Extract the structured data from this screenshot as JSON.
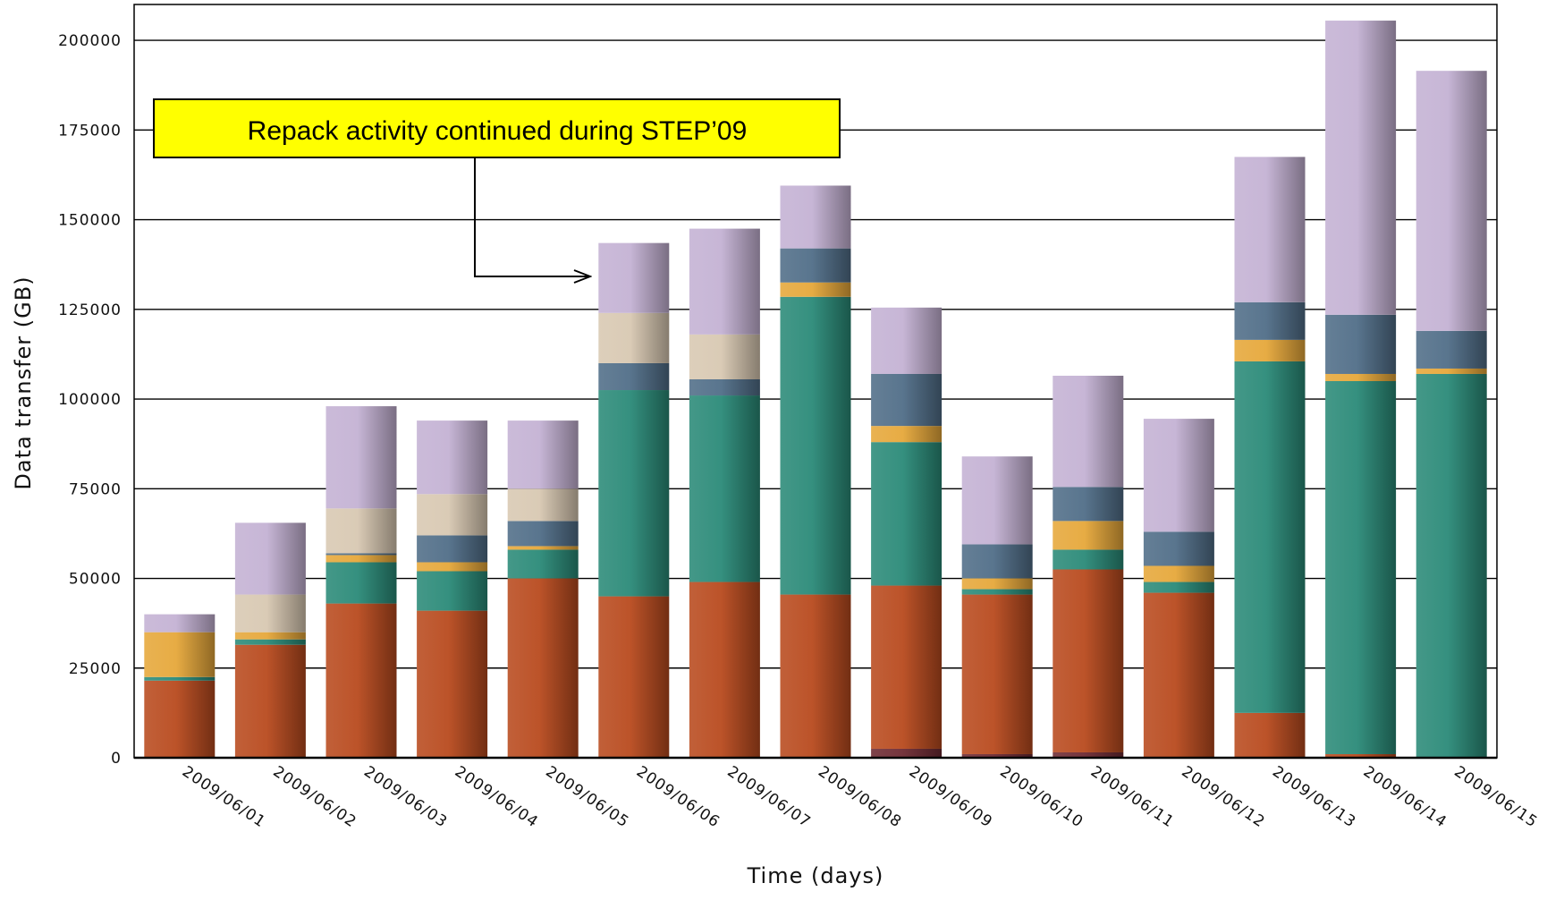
{
  "chart_data": {
    "type": "bar",
    "stacked": true,
    "xlabel": "Time (days)",
    "ylabel": "Data transfer (GB)",
    "ylim": [
      0,
      210000
    ],
    "yticks": [
      0,
      25000,
      50000,
      75000,
      100000,
      125000,
      150000,
      175000,
      200000
    ],
    "ytick_labels": [
      "0",
      "25000",
      "50000",
      "75000",
      "100000",
      "125000",
      "150000",
      "175000",
      "200000"
    ],
    "grid": "horizontal",
    "legend": "none",
    "categories": [
      "2009/06/01",
      "2009/06/02",
      "2009/06/03",
      "2009/06/04",
      "2009/06/05",
      "2009/06/06",
      "2009/06/07",
      "2009/06/08",
      "2009/06/09",
      "2009/06/10",
      "2009/06/11",
      "2009/06/12",
      "2009/06/13",
      "2009/06/14",
      "2009/06/15"
    ],
    "series": [
      {
        "color": "#6e2a33",
        "values": [
          0,
          0,
          0,
          0,
          0,
          0,
          0,
          0,
          2500,
          1000,
          1500,
          0,
          0,
          0,
          0
        ]
      },
      {
        "color": "#b84a1e",
        "values": [
          21500,
          31500,
          43000,
          41000,
          50000,
          45000,
          49000,
          45500,
          45500,
          44500,
          51000,
          46000,
          12500,
          1000,
          0
        ]
      },
      {
        "color": "#2a8a78",
        "values": [
          1000,
          1500,
          11500,
          11000,
          8000,
          57500,
          52000,
          83000,
          40000,
          1500,
          5500,
          3000,
          98000,
          104000,
          107000
        ]
      },
      {
        "color": "#e6a83a",
        "values": [
          12500,
          2000,
          2000,
          2500,
          1000,
          0,
          0,
          4000,
          4500,
          3000,
          8000,
          4500,
          6000,
          2000,
          1500
        ]
      },
      {
        "color": "#506e88",
        "values": [
          0,
          0,
          500,
          7500,
          7000,
          7500,
          4500,
          9500,
          14500,
          9500,
          9500,
          9500,
          10500,
          16500,
          10500
        ]
      },
      {
        "color": "#d8c8b2",
        "values": [
          0,
          10500,
          12500,
          11500,
          9000,
          14000,
          12500,
          0,
          0,
          0,
          0,
          0,
          0,
          0,
          0
        ]
      },
      {
        "color": "#c4b2d4",
        "values": [
          5000,
          20000,
          28500,
          20500,
          19000,
          19500,
          29500,
          17500,
          18500,
          24500,
          31000,
          31500,
          40500,
          82000,
          72500
        ]
      }
    ],
    "annotation": {
      "text": "Repack activity continued during STEP’09",
      "box_color": "#ffff00",
      "points_to": "2009/06/06"
    }
  }
}
